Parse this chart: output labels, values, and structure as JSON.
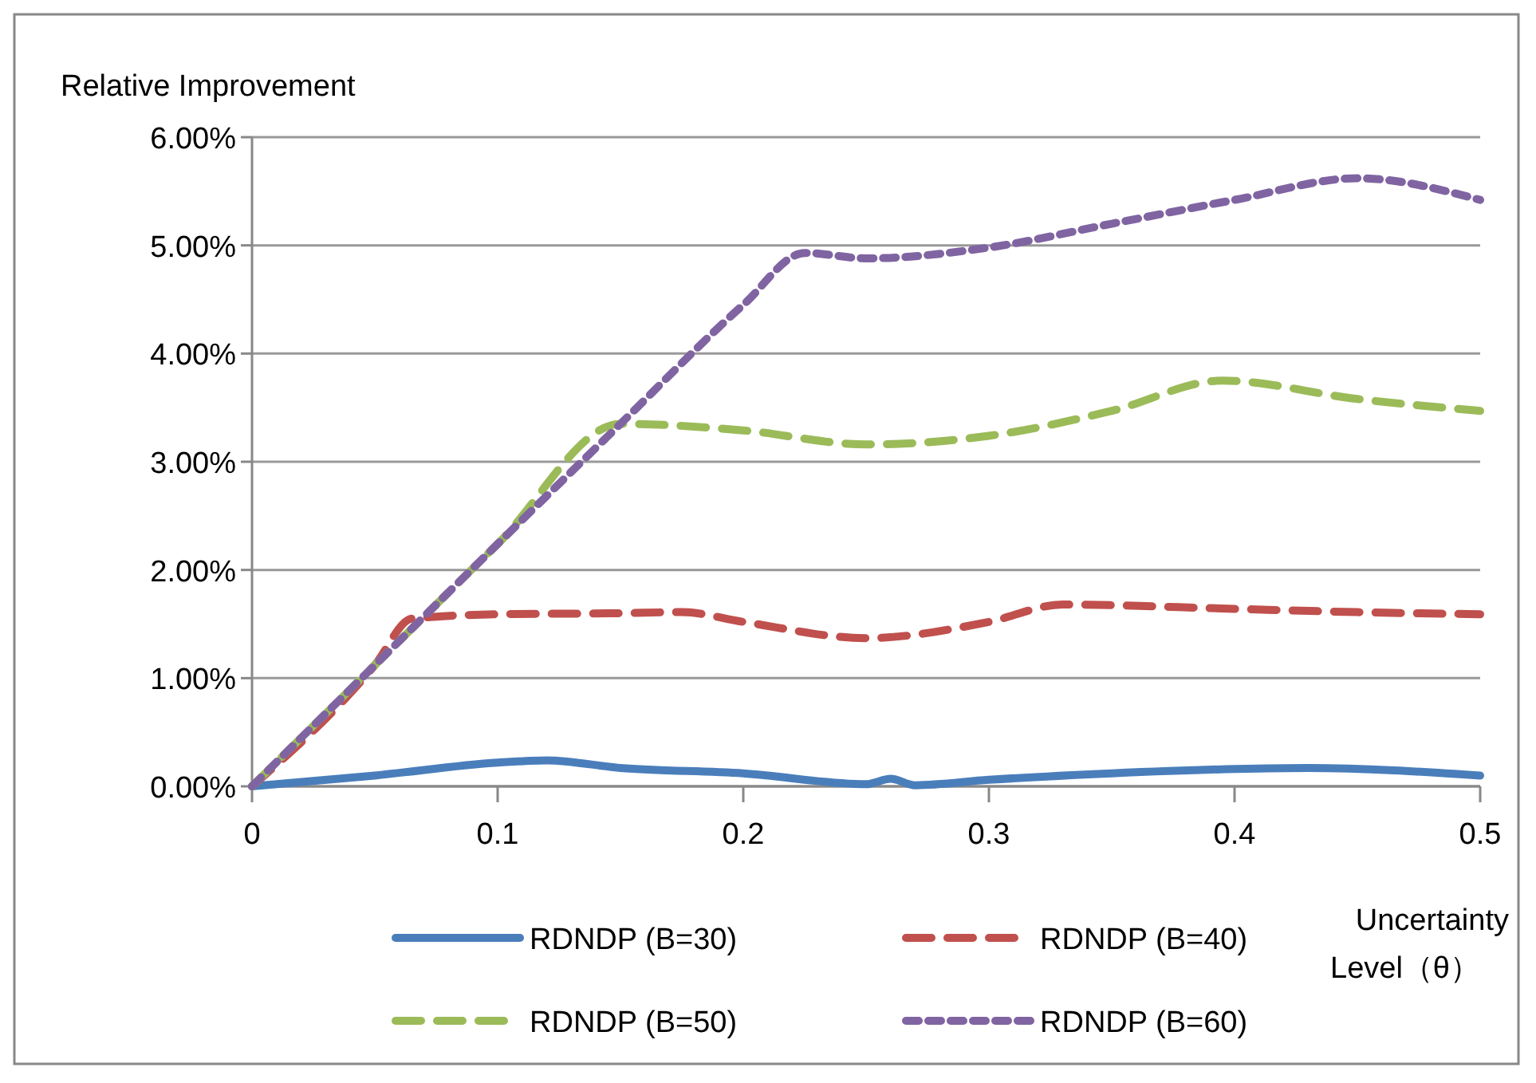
{
  "chart_data": {
    "type": "line",
    "ylabel": "Relative Improvement",
    "xlabel": "Uncertainty Level（θ）",
    "xlim": [
      0,
      0.5
    ],
    "xticks": [
      0,
      0.1,
      0.2,
      0.3,
      0.4,
      0.5
    ],
    "ylim": [
      0,
      6
    ],
    "yticks": [
      {
        "value": 0,
        "label": "0.00%"
      },
      {
        "value": 1,
        "label": "1.00%"
      },
      {
        "value": 2,
        "label": "2.00%"
      },
      {
        "value": 3,
        "label": "3.00%"
      },
      {
        "value": 4,
        "label": "4.00%"
      },
      {
        "value": 5,
        "label": "5.00%"
      },
      {
        "value": 6,
        "label": "6.00%"
      }
    ],
    "grid": "y",
    "legend": "bottom",
    "series": [
      {
        "name": "RDNDP (B=30)",
        "color": "#4a7ebb",
        "line_style": "solid",
        "x": [
          0,
          0.05,
          0.1,
          0.12,
          0.15,
          0.2,
          0.25,
          0.26,
          0.27,
          0.3,
          0.35,
          0.4,
          0.43,
          0.5
        ],
        "values": [
          0,
          0.1,
          0.22,
          0.24,
          0.17,
          0.12,
          0.02,
          0.07,
          0.01,
          0.06,
          0.12,
          0.16,
          0.17,
          0.1
        ]
      },
      {
        "name": "RDNDP (B=40)",
        "color": "#c0504d",
        "line_style": "dashed",
        "x": [
          0,
          0.05,
          0.065,
          0.1,
          0.15,
          0.175,
          0.2,
          0.25,
          0.3,
          0.33,
          0.4,
          0.45,
          0.5
        ],
        "values": [
          0,
          1.12,
          1.55,
          1.59,
          1.6,
          1.61,
          1.52,
          1.37,
          1.52,
          1.68,
          1.64,
          1.61,
          1.59
        ]
      },
      {
        "name": "RDNDP (B=50)",
        "color": "#9bbb59",
        "line_style": "dashed",
        "x": [
          0,
          0.05,
          0.1,
          0.15,
          0.2,
          0.25,
          0.3,
          0.35,
          0.395,
          0.45,
          0.5
        ],
        "values": [
          0,
          1.12,
          2.24,
          3.35,
          3.29,
          3.16,
          3.24,
          3.47,
          3.75,
          3.58,
          3.47
        ]
      },
      {
        "name": "RDNDP (B=60)",
        "color": "#8064a2",
        "line_style": "dotted",
        "x": [
          0,
          0.05,
          0.1,
          0.15,
          0.2,
          0.225,
          0.25,
          0.3,
          0.35,
          0.4,
          0.45,
          0.5
        ],
        "values": [
          0,
          1.12,
          2.24,
          3.35,
          4.45,
          4.93,
          4.88,
          4.98,
          5.2,
          5.42,
          5.62,
          5.42
        ]
      }
    ]
  }
}
